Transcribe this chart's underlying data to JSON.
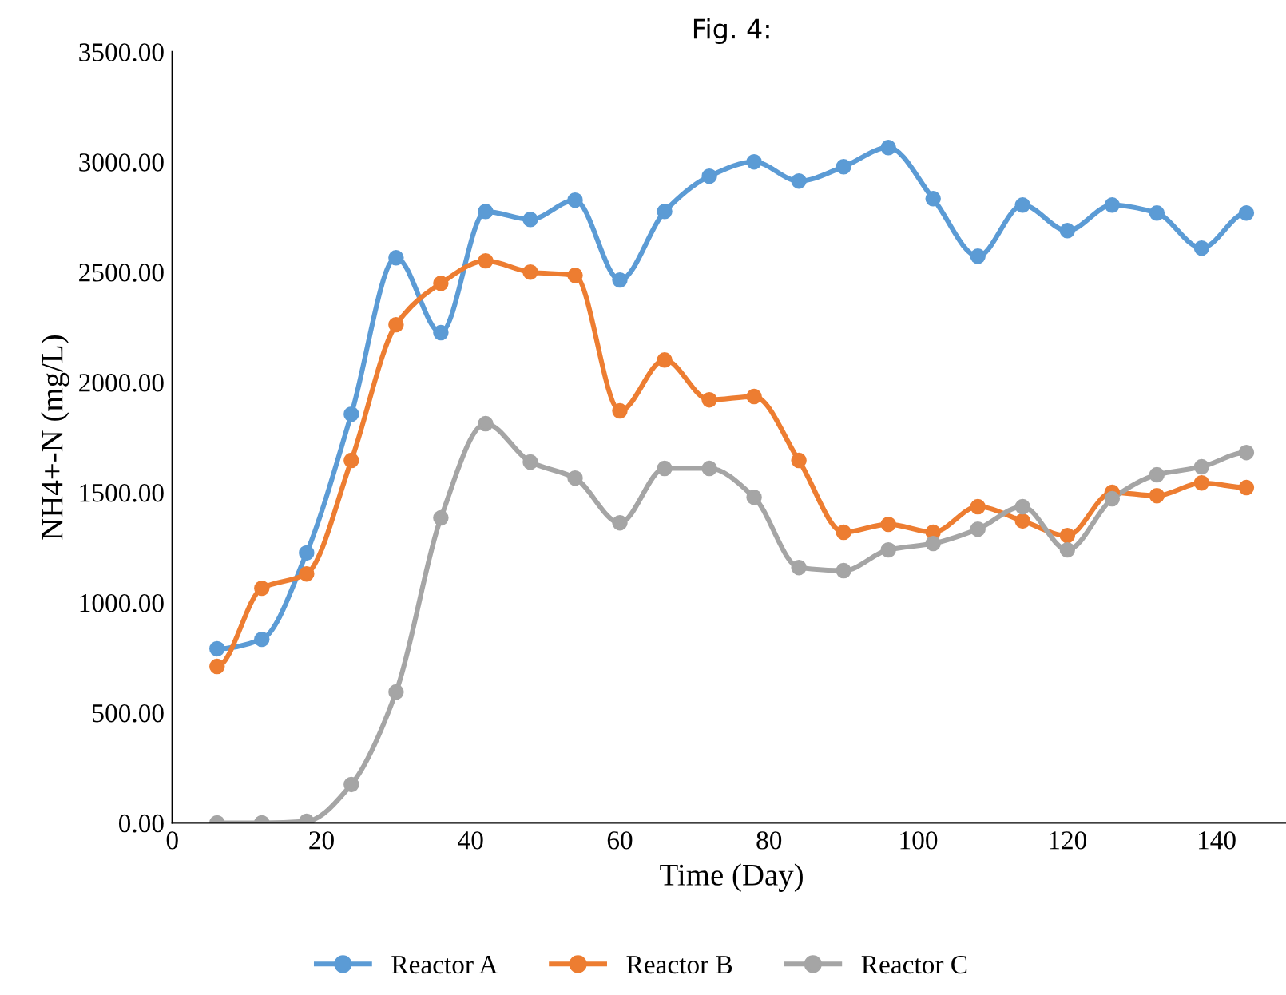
{
  "chart_data": {
    "type": "line",
    "title": "Fig. 4:",
    "xlabel": "Time (Day)",
    "ylabel": "NH4+-N (mg/L)",
    "x": [
      6,
      12,
      18,
      24,
      30,
      36,
      42,
      48,
      54,
      60,
      66,
      72,
      78,
      84,
      90,
      96,
      102,
      108,
      114,
      120,
      126,
      132,
      138,
      144
    ],
    "series": [
      {
        "name": "Reactor A",
        "color": "#5b9bd5",
        "values": [
          790,
          833,
          1225,
          1855,
          2565,
          2225,
          2775,
          2739,
          2826,
          2464,
          2775,
          2935,
          3000,
          2913,
          2978,
          3065,
          2833,
          2572,
          2804,
          2688,
          2804,
          2768,
          2609,
          2768
        ]
      },
      {
        "name": "Reactor B",
        "color": "#ed7d31",
        "values": [
          710,
          1065,
          1130,
          1645,
          2261,
          2449,
          2551,
          2500,
          2485,
          1870,
          2101,
          1920,
          1935,
          1645,
          1319,
          1355,
          1319,
          1435,
          1370,
          1304,
          1500,
          1485,
          1543,
          1522
        ]
      },
      {
        "name": "Reactor C",
        "color": "#a5a5a5",
        "values": [
          0,
          0,
          7,
          174,
          594,
          1384,
          1812,
          1638,
          1565,
          1362,
          1609,
          1609,
          1478,
          1159,
          1145,
          1239,
          1268,
          1333,
          1435,
          1239,
          1471,
          1580,
          1616,
          1681
        ]
      }
    ],
    "xlim": [
      0,
      150
    ],
    "xticks": [
      0,
      20,
      40,
      60,
      80,
      100,
      120,
      140
    ],
    "ylim": [
      0,
      3500
    ],
    "yticks": [
      {
        "value": 0,
        "label": "0.00"
      },
      {
        "value": 500,
        "label": "500.00"
      },
      {
        "value": 1000,
        "label": "1000.00"
      },
      {
        "value": 1500,
        "label": "1500.00"
      },
      {
        "value": 2000,
        "label": "2000.00"
      },
      {
        "value": 2500,
        "label": "2500.00"
      },
      {
        "value": 3000,
        "label": "3000.00"
      },
      {
        "value": 3500,
        "label": "3500.00"
      }
    ],
    "grid": false,
    "legend": "bottom",
    "marker": "circle",
    "line_style": "solid"
  }
}
